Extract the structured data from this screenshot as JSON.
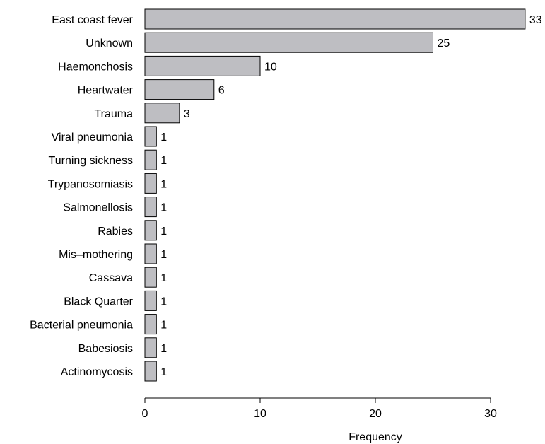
{
  "chart_data": {
    "type": "bar",
    "orientation": "horizontal",
    "categories": [
      "East coast fever",
      "Unknown",
      "Haemonchosis",
      "Heartwater",
      "Trauma",
      "Viral pneumonia",
      "Turning sickness",
      "Trypanosomiasis",
      "Salmonellosis",
      "Rabies",
      "Mis–mothering",
      "Cassava",
      "Black Quarter",
      "Bacterial pneumonia",
      "Babesiosis",
      "Actinomycosis"
    ],
    "values": [
      33,
      25,
      10,
      6,
      3,
      1,
      1,
      1,
      1,
      1,
      1,
      1,
      1,
      1,
      1,
      1
    ],
    "title": "",
    "xlabel": "Frequency",
    "ylabel": "",
    "xlim": [
      0,
      33
    ],
    "xticks": [
      0,
      10,
      20,
      30
    ],
    "grid": false,
    "bar_color": "#bebec2",
    "bar_edge_color": "#000000"
  }
}
